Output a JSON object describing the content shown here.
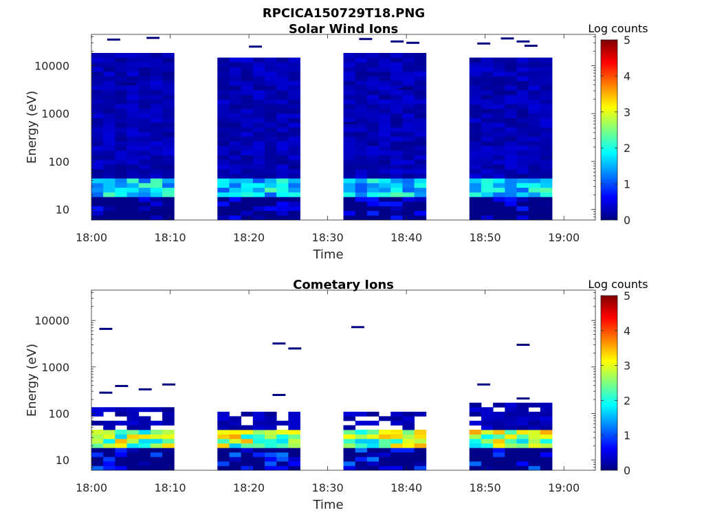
{
  "figure_title": "RPCICA150729T18.PNG",
  "colorscale": [
    "#00007f",
    "#0000ff",
    "#007fff",
    "#00ffff",
    "#7fff7f",
    "#ffff00",
    "#ff7f00",
    "#ff0000",
    "#7f0000"
  ],
  "chart_data": [
    {
      "type": "heatmap",
      "title": "Solar Wind Ions",
      "xlabel": "Time",
      "ylabel": "Energy (eV)",
      "yscale": "log",
      "x_range": [
        "18:00",
        "19:04"
      ],
      "y_range": [
        6,
        45000
      ],
      "x_ticks": [
        "18:00",
        "18:10",
        "18:20",
        "18:30",
        "18:40",
        "18:50",
        "19:00"
      ],
      "y_ticks": [
        {
          "value": 10,
          "label": "10"
        },
        {
          "value": 100,
          "label": "100"
        },
        {
          "value": 1000,
          "label": "1000"
        },
        {
          "value": 10000,
          "label": "10000"
        }
      ],
      "colorbar": {
        "label": "Log counts",
        "range": [
          0,
          5
        ],
        "ticks": [
          "0",
          "1",
          "2",
          "3",
          "4",
          "5"
        ]
      },
      "blocks": [
        {
          "start": "18:00",
          "end": "18:10",
          "top_energy": 18000
        },
        {
          "start": "18:16",
          "end": "18:26",
          "top_energy": 16000
        },
        {
          "start": "18:32",
          "end": "18:42",
          "top_energy": 17000
        },
        {
          "start": "18:48",
          "end": "18:58",
          "top_energy": 15000
        }
      ],
      "peak_band": {
        "energy_low": 18,
        "energy_high": 42,
        "log_counts_max": 2.3
      },
      "background_log_counts": 0.1,
      "isolated_hits": [
        {
          "time": "18:02",
          "energy": 35000
        },
        {
          "time": "18:07",
          "energy": 38000
        },
        {
          "time": "18:04",
          "energy": 4200
        },
        {
          "time": "18:20",
          "energy": 25000
        },
        {
          "time": "18:34",
          "energy": 36000
        },
        {
          "time": "18:38",
          "energy": 32000
        },
        {
          "time": "18:40",
          "energy": 30000
        },
        {
          "time": "18:39",
          "energy": 3300
        },
        {
          "time": "18:32",
          "energy": 640
        },
        {
          "time": "18:49",
          "energy": 29000
        },
        {
          "time": "18:52",
          "energy": 37000
        },
        {
          "time": "18:54",
          "energy": 32000
        },
        {
          "time": "18:55",
          "energy": 26000
        }
      ]
    },
    {
      "type": "heatmap",
      "title": "Cometary Ions",
      "xlabel": "Time",
      "ylabel": "Energy (eV)",
      "yscale": "log",
      "x_range": [
        "18:00",
        "19:04"
      ],
      "y_range": [
        6,
        45000
      ],
      "x_ticks": [
        "18:00",
        "18:10",
        "18:20",
        "18:30",
        "18:40",
        "18:50",
        "19:00"
      ],
      "y_ticks": [
        {
          "value": 10,
          "label": "10"
        },
        {
          "value": 100,
          "label": "100"
        },
        {
          "value": 1000,
          "label": "1000"
        },
        {
          "value": 10000,
          "label": "10000"
        }
      ],
      "colorbar": {
        "label": "Log counts",
        "range": [
          0,
          5
        ],
        "ticks": [
          "0",
          "1",
          "2",
          "3",
          "4",
          "5"
        ]
      },
      "blocks": [
        {
          "start": "18:00",
          "end": "18:10",
          "top_energy": 130
        },
        {
          "start": "18:16",
          "end": "18:26",
          "top_energy": 110
        },
        {
          "start": "18:32",
          "end": "18:42",
          "top_energy": 120
        },
        {
          "start": "18:48",
          "end": "18:58",
          "top_energy": 160
        }
      ],
      "peak_band": {
        "energy_low": 17,
        "energy_high": 45,
        "log_counts_max": 3.6
      },
      "background_log_counts": 0.1,
      "isolated_hits": [
        {
          "time": "18:01",
          "energy": 6600
        },
        {
          "time": "18:03",
          "energy": 390
        },
        {
          "time": "18:06",
          "energy": 330
        },
        {
          "time": "18:09",
          "energy": 420
        },
        {
          "time": "18:01",
          "energy": 280
        },
        {
          "time": "18:23",
          "energy": 3200
        },
        {
          "time": "18:25",
          "energy": 2500
        },
        {
          "time": "18:23",
          "energy": 250
        },
        {
          "time": "18:33",
          "energy": 7200
        },
        {
          "time": "18:54",
          "energy": 3000
        },
        {
          "time": "18:49",
          "energy": 420
        },
        {
          "time": "18:54",
          "energy": 210
        }
      ]
    }
  ]
}
